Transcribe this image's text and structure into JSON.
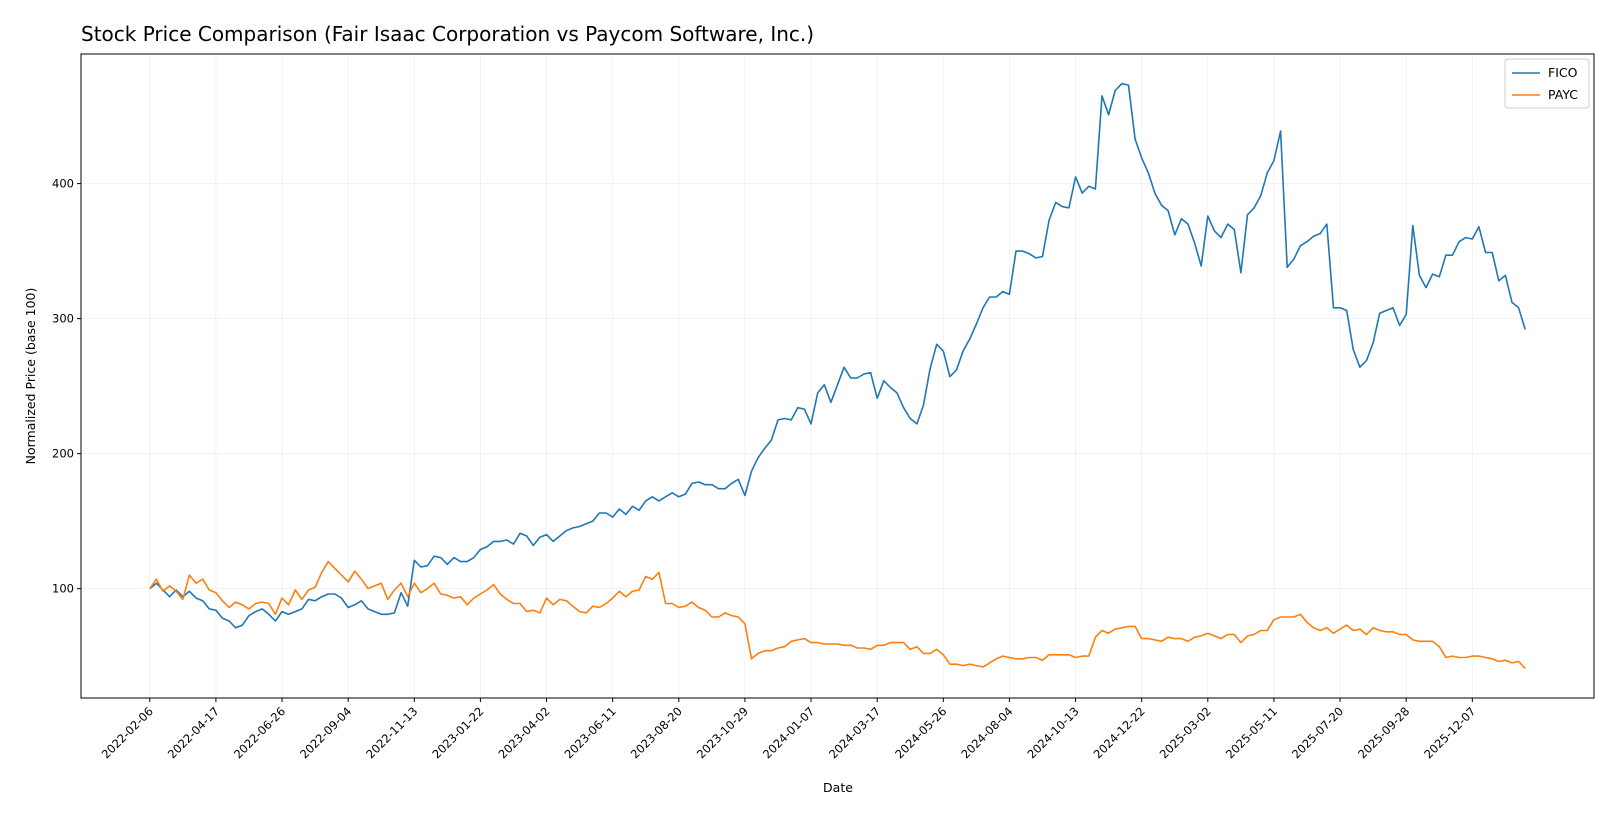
{
  "chart_data": {
    "type": "line",
    "title": "Stock Price Comparison (Fair Isaac Corporation vs Paycom Software, Inc.)",
    "xlabel": "Date",
    "ylabel": "Normalized Price (base 100)",
    "ylim": [
      19,
      496
    ],
    "grid": true,
    "legend_position": "top-right",
    "x_ticks": [
      "2022-02-06",
      "2022-04-17",
      "2022-06-26",
      "2022-09-04",
      "2022-11-13",
      "2023-01-22",
      "2023-04-02",
      "2023-06-11",
      "2023-08-20",
      "2023-10-29",
      "2024-01-07",
      "2024-03-17",
      "2024-05-26",
      "2024-08-04",
      "2024-10-13",
      "2024-12-22",
      "2025-03-02",
      "2025-05-11",
      "2025-07-20",
      "2025-09-28",
      "2025-12-07"
    ],
    "y_ticks": [
      100,
      200,
      300,
      400
    ],
    "dates": [
      "2022-02-06",
      "2022-02-13",
      "2022-02-20",
      "2022-02-27",
      "2022-03-06",
      "2022-03-13",
      "2022-03-20",
      "2022-03-27",
      "2022-04-03",
      "2022-04-10",
      "2022-04-17",
      "2022-04-24",
      "2022-05-01",
      "2022-05-08",
      "2022-05-15",
      "2022-05-22",
      "2022-05-29",
      "2022-06-05",
      "2022-06-12",
      "2022-06-19",
      "2022-06-26",
      "2022-07-03",
      "2022-07-10",
      "2022-07-17",
      "2022-07-24",
      "2022-07-31",
      "2022-08-07",
      "2022-08-14",
      "2022-08-21",
      "2022-08-28",
      "2022-09-04",
      "2022-09-11",
      "2022-09-18",
      "2022-09-25",
      "2022-10-02",
      "2022-10-09",
      "2022-10-16",
      "2022-10-23",
      "2022-10-30",
      "2022-11-06",
      "2022-11-13",
      "2022-11-20",
      "2022-11-27",
      "2022-12-04",
      "2022-12-11",
      "2022-12-18",
      "2022-12-25",
      "2023-01-01",
      "2023-01-08",
      "2023-01-15",
      "2023-01-22",
      "2023-01-29",
      "2023-02-05",
      "2023-02-12",
      "2023-02-19",
      "2023-02-26",
      "2023-03-05",
      "2023-03-12",
      "2023-03-19",
      "2023-03-26",
      "2023-04-02",
      "2023-04-09",
      "2023-04-16",
      "2023-04-23",
      "2023-04-30",
      "2023-05-07",
      "2023-05-14",
      "2023-05-21",
      "2023-05-28",
      "2023-06-04",
      "2023-06-11",
      "2023-06-18",
      "2023-06-25",
      "2023-07-02",
      "2023-07-09",
      "2023-07-16",
      "2023-07-23",
      "2023-07-30",
      "2023-08-06",
      "2023-08-13",
      "2023-08-20",
      "2023-08-27",
      "2023-09-03",
      "2023-09-10",
      "2023-09-17",
      "2023-09-24",
      "2023-10-01",
      "2023-10-08",
      "2023-10-15",
      "2023-10-22",
      "2023-10-29",
      "2023-11-05",
      "2023-11-12",
      "2023-11-19",
      "2023-11-26",
      "2023-12-03",
      "2023-12-10",
      "2023-12-17",
      "2023-12-24",
      "2023-12-31",
      "2024-01-07",
      "2024-01-14",
      "2024-01-21",
      "2024-01-28",
      "2024-02-04",
      "2024-02-11",
      "2024-02-18",
      "2024-02-25",
      "2024-03-03",
      "2024-03-10",
      "2024-03-17",
      "2024-03-24",
      "2024-03-31",
      "2024-04-07",
      "2024-04-14",
      "2024-04-21",
      "2024-04-28",
      "2024-05-05",
      "2024-05-12",
      "2024-05-19",
      "2024-05-26",
      "2024-06-02",
      "2024-06-09",
      "2024-06-16",
      "2024-06-23",
      "2024-06-30",
      "2024-07-07",
      "2024-07-14",
      "2024-07-21",
      "2024-07-28",
      "2024-08-04",
      "2024-08-11",
      "2024-08-18",
      "2024-08-25",
      "2024-09-01",
      "2024-09-08",
      "2024-09-15",
      "2024-09-22",
      "2024-09-29",
      "2024-10-06",
      "2024-10-13",
      "2024-10-20",
      "2024-10-27",
      "2024-11-03",
      "2024-11-10",
      "2024-11-17",
      "2024-11-24",
      "2024-12-01",
      "2024-12-08",
      "2024-12-15",
      "2024-12-22",
      "2024-12-29",
      "2025-01-05",
      "2025-01-12",
      "2025-01-19",
      "2025-01-26",
      "2025-02-02",
      "2025-02-09",
      "2025-02-16",
      "2025-02-23",
      "2025-03-02",
      "2025-03-09",
      "2025-03-16",
      "2025-03-23",
      "2025-03-30",
      "2025-04-06",
      "2025-04-13",
      "2025-04-20",
      "2025-04-27",
      "2025-05-04",
      "2025-05-11",
      "2025-05-18",
      "2025-05-25",
      "2025-06-01",
      "2025-06-08",
      "2025-06-15",
      "2025-06-22",
      "2025-06-29",
      "2025-07-06",
      "2025-07-13",
      "2025-07-20",
      "2025-07-27",
      "2025-08-03",
      "2025-08-10",
      "2025-08-17",
      "2025-08-24",
      "2025-08-31",
      "2025-09-07",
      "2025-09-14",
      "2025-09-21",
      "2025-09-28",
      "2025-10-05",
      "2025-10-12",
      "2025-10-19",
      "2025-10-26",
      "2025-11-02",
      "2025-11-09",
      "2025-11-16",
      "2025-11-23",
      "2025-11-30",
      "2025-12-07",
      "2025-12-14",
      "2025-12-21",
      "2025-12-28",
      "2026-01-04",
      "2026-01-11",
      "2026-01-18",
      "2026-01-25",
      "2026-02-01"
    ],
    "series": [
      {
        "name": "FICO",
        "color": "#1f77b4",
        "values": [
          100,
          104,
          99,
          94,
          99,
          94,
          98,
          93,
          91,
          85,
          84,
          78,
          76,
          71,
          73,
          80,
          83,
          85,
          81,
          76,
          83,
          81,
          83,
          85,
          92,
          91,
          94,
          96,
          96,
          93,
          86,
          88,
          91,
          85,
          83,
          81,
          81,
          82,
          97,
          87,
          121,
          116,
          117,
          124,
          123,
          118,
          123,
          120,
          120,
          123,
          129,
          131,
          135,
          135,
          136,
          133,
          141,
          139,
          132,
          138,
          140,
          135,
          139,
          143,
          145,
          146,
          148,
          150,
          156,
          156,
          153,
          159,
          155,
          161,
          158,
          165,
          168,
          165,
          168,
          171,
          168,
          170,
          178,
          179,
          177,
          177,
          174,
          174,
          178,
          181,
          169,
          187,
          197,
          204,
          210,
          225,
          226,
          225,
          234,
          233,
          222,
          245,
          251,
          238,
          251,
          264,
          256,
          256,
          259,
          260,
          241,
          254,
          249,
          245,
          234,
          226,
          222,
          236,
          263,
          281,
          276,
          257,
          262,
          276,
          285,
          296,
          308,
          316,
          316,
          320,
          318,
          350,
          350,
          348,
          345,
          346,
          373,
          386,
          383,
          382,
          405,
          393,
          398,
          396,
          465,
          451,
          469,
          474,
          473,
          433,
          419,
          408,
          393,
          384,
          380,
          362,
          374,
          370,
          356,
          339,
          376,
          365,
          360,
          370,
          366,
          334,
          377,
          382,
          391,
          408,
          417,
          439,
          338,
          344,
          354,
          357,
          361,
          363,
          370,
          308,
          308,
          306,
          277,
          264,
          269,
          282,
          304,
          306,
          308,
          295,
          303,
          369,
          332,
          323,
          333,
          331,
          347,
          347,
          357,
          360,
          359,
          368,
          349,
          349,
          328,
          332,
          312,
          308,
          292
        ]
      },
      {
        "name": "PAYC",
        "color": "#ff7f0e",
        "values": [
          100,
          107,
          98,
          102,
          98,
          92,
          110,
          104,
          107,
          99,
          97,
          91,
          86,
          90,
          88,
          85,
          89,
          90,
          89,
          81,
          93,
          88,
          99,
          92,
          99,
          101,
          112,
          120,
          115,
          110,
          105,
          113,
          107,
          100,
          102,
          104,
          92,
          99,
          104,
          94,
          104,
          97,
          100,
          104,
          96,
          95,
          93,
          94,
          88,
          93,
          96,
          99,
          103,
          96,
          92,
          89,
          89,
          83,
          84,
          82,
          93,
          88,
          92,
          91,
          87,
          83,
          82,
          87,
          86,
          89,
          93,
          98,
          94,
          98,
          99,
          109,
          107,
          112,
          89,
          89,
          86,
          87,
          90,
          86,
          84,
          79,
          79,
          82,
          80,
          79,
          74,
          48,
          52,
          54,
          54,
          56,
          57,
          61,
          62,
          63,
          60,
          60,
          59,
          59,
          59,
          58,
          58,
          56,
          56,
          55,
          58,
          58,
          60,
          60,
          60,
          55,
          57,
          52,
          52,
          55,
          51,
          44,
          44,
          43,
          44,
          43,
          42,
          45,
          48,
          50,
          49,
          48,
          48,
          49,
          49,
          47,
          51,
          51,
          51,
          51,
          49,
          50,
          50,
          64,
          69,
          67,
          70,
          71,
          72,
          72,
          63,
          63,
          62,
          61,
          64,
          63,
          63,
          61,
          64,
          65,
          67,
          65,
          63,
          66,
          66,
          60,
          65,
          66,
          69,
          69,
          77,
          79,
          79,
          79,
          81,
          75,
          71,
          69,
          71,
          67,
          70,
          73,
          69,
          70,
          66,
          71,
          69,
          68,
          68,
          66,
          66,
          62,
          61,
          61,
          61,
          57,
          49,
          50,
          49,
          49,
          50,
          50,
          49,
          48,
          46,
          47,
          45,
          46,
          41
        ]
      }
    ]
  }
}
